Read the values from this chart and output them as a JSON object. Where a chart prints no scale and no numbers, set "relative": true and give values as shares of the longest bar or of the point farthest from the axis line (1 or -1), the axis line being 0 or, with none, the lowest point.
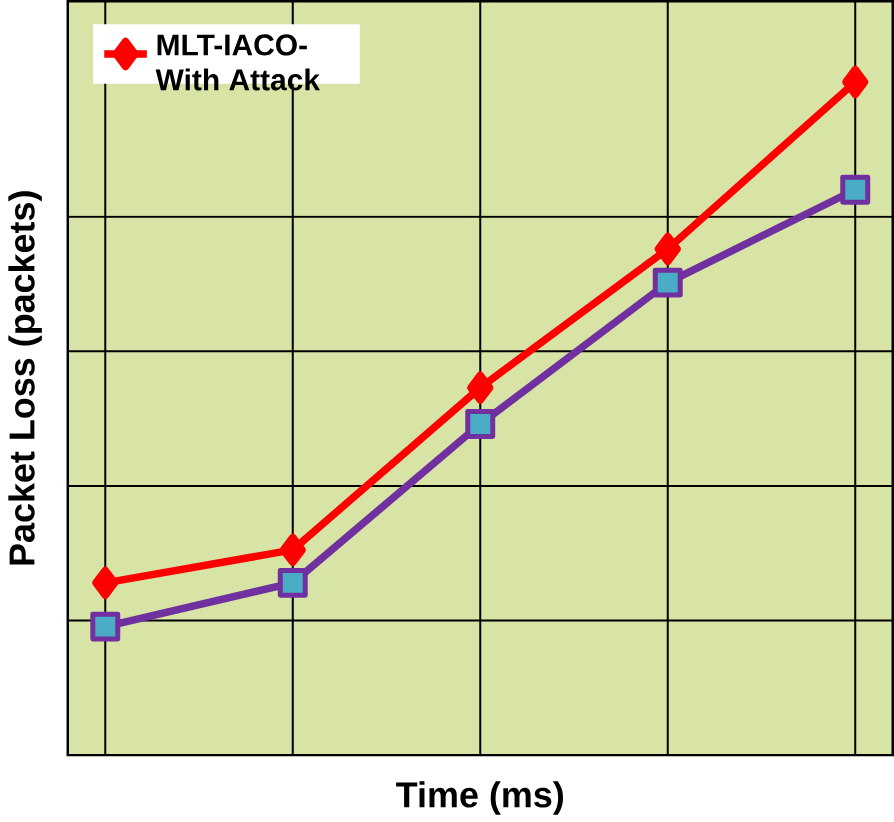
{
  "chart_data": {
    "type": "line",
    "relative": true,
    "xlabel": "Time (ms)",
    "ylabel": "Packet Loss (packets)",
    "categories": [
      null,
      null,
      null,
      null,
      null
    ],
    "grid": true,
    "legend": "top left",
    "series": [
      {
        "name": "MLT-IACO-With Attack",
        "color": "#ff0000",
        "marker": "diamond",
        "values": [
          0.256,
          0.305,
          0.546,
          0.752,
          1
        ]
      },
      {
        "color": "#7030a0",
        "marker": "square",
        "values": [
          0.191,
          0.256,
          0.492,
          0.702,
          0.84
        ]
      }
    ]
  }
}
